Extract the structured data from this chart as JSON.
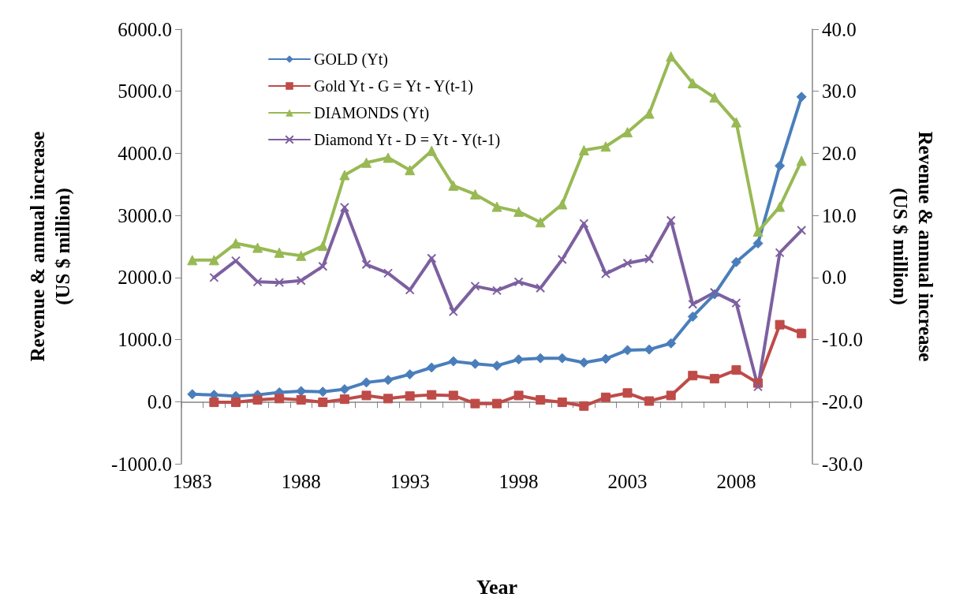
{
  "chart_data": {
    "type": "line",
    "categories": [
      "1983",
      null,
      null,
      null,
      null,
      "1988",
      null,
      null,
      null,
      null,
      "1993",
      null,
      null,
      null,
      null,
      "1998",
      null,
      null,
      null,
      null,
      "2003",
      null,
      null,
      null,
      null,
      "2008",
      null,
      null,
      null
    ],
    "xlabel": "Year",
    "ylabel": "Revenue & annual increase\n(US $ million)",
    "y2label": "Revenue & annual increase\n(US $ million)",
    "ylim": [
      -1000,
      6000
    ],
    "yticks": [
      {
        "value": -1000,
        "label": "-1000.0"
      },
      {
        "value": 0,
        "label": "0.0"
      },
      {
        "value": 1000,
        "label": "1000.0"
      },
      {
        "value": 2000,
        "label": "2000.0"
      },
      {
        "value": 3000,
        "label": "3000.0"
      },
      {
        "value": 4000,
        "label": "4000.0"
      },
      {
        "value": 5000,
        "label": "5000.0"
      },
      {
        "value": 6000,
        "label": "6000.0"
      }
    ],
    "y2lim": [
      -30,
      40
    ],
    "y2ticks": [
      {
        "value": -30,
        "label": "-30.0"
      },
      {
        "value": -20,
        "label": "-20.0"
      },
      {
        "value": -10,
        "label": "-10.0"
      },
      {
        "value": 0,
        "label": "0.0"
      },
      {
        "value": 10,
        "label": "10.0"
      },
      {
        "value": 20,
        "label": "20.0"
      },
      {
        "value": 30,
        "label": "30.0"
      },
      {
        "value": 40,
        "label": "40.0"
      }
    ],
    "legend": "top left",
    "series": [
      {
        "name": "GOLD (Yt)",
        "color": "#4a7ebb",
        "marker": "diamond",
        "values": [
          120,
          110,
          90,
          110,
          150,
          170,
          160,
          200,
          310,
          350,
          440,
          550,
          650,
          610,
          580,
          680,
          700,
          700,
          630,
          690,
          830,
          840,
          940,
          1370,
          1730,
          2250,
          2550,
          3800,
          4910
        ]
      },
      {
        "name": "Gold Yt - G = Yt - Y(t-1)",
        "color": "#be4b48",
        "marker": "square",
        "values": [
          null,
          -10,
          -10,
          30,
          50,
          30,
          -10,
          40,
          100,
          50,
          90,
          110,
          100,
          -30,
          -30,
          100,
          30,
          -10,
          -70,
          70,
          140,
          10,
          100,
          420,
          370,
          510,
          300,
          1240,
          1100
        ]
      },
      {
        "name": "DIAMONDS (Yt)",
        "color": "#98b954",
        "marker": "triangle",
        "values": [
          2280,
          2280,
          2550,
          2480,
          2400,
          2350,
          2510,
          3650,
          3850,
          3930,
          3730,
          4040,
          3480,
          3340,
          3140,
          3060,
          2890,
          3180,
          4050,
          4110,
          4340,
          4640,
          5560,
          5130,
          4900,
          4500,
          2740,
          3140,
          3880
        ]
      },
      {
        "name": "Diamond Yt - D = Yt - Y(t-1)",
        "color": "#7d60a0",
        "marker": "cross",
        "axis": "y2",
        "values": [
          null,
          0.0,
          2.7,
          -0.7,
          -0.8,
          -0.5,
          1.8,
          11.3,
          2.1,
          0.7,
          -2.0,
          3.1,
          -5.5,
          -1.4,
          -2.1,
          -0.7,
          -1.7,
          2.9,
          8.7,
          0.6,
          2.3,
          3.0,
          9.2,
          -4.3,
          -2.4,
          -4.1,
          -17.6,
          4.0,
          7.6
        ]
      }
    ]
  }
}
